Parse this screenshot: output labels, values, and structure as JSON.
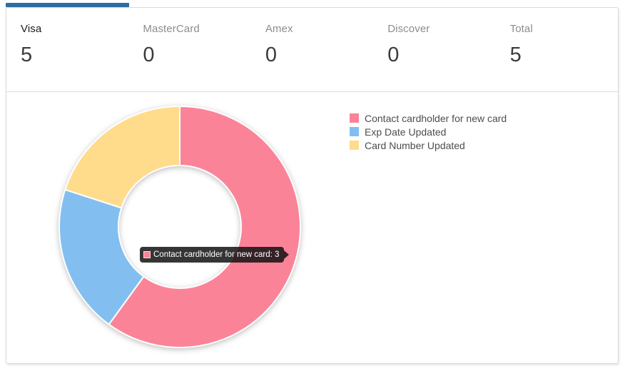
{
  "stats": {
    "items": [
      {
        "label": "Visa",
        "value": "5"
      },
      {
        "label": "MasterCard",
        "value": "0"
      },
      {
        "label": "Amex",
        "value": "0"
      },
      {
        "label": "Discover",
        "value": "0"
      },
      {
        "label": "Total",
        "value": "5"
      }
    ],
    "active_index": 0
  },
  "chart_data": {
    "type": "pie",
    "variant": "donut",
    "title": "",
    "categories": [
      "Contact cardholder for new card",
      "Exp Date Updated",
      "Card Number Updated"
    ],
    "values": [
      3,
      1,
      1
    ],
    "total": 5,
    "colors": [
      "#fb8398",
      "#82bff0",
      "#ffdb8c"
    ],
    "start_angle_deg": 0,
    "direction": "clockwise",
    "inner_radius_ratio": 0.51,
    "legend_position": "right"
  },
  "tooltip": {
    "text": "Contact cardholder for new card: 3",
    "series_index": 0
  },
  "colors": {
    "active_tab_bar": "#2e6da4",
    "panel_border": "#d9d9d9"
  }
}
